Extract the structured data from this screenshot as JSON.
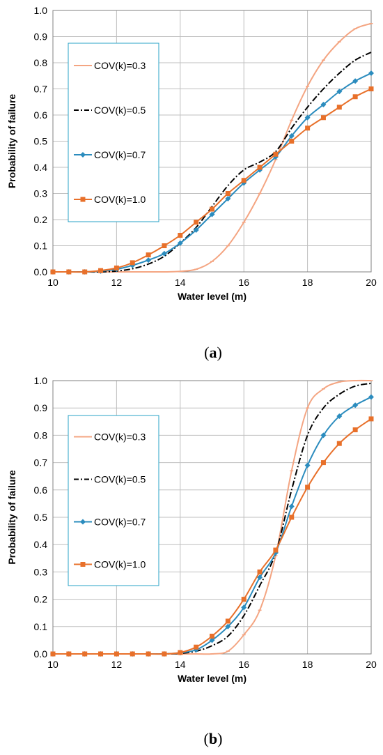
{
  "chart_data": [
    {
      "type": "line",
      "panel_label": {
        "open": "(",
        "letter": "a",
        "close": ")"
      },
      "xlabel": "Water level (m)",
      "ylabel": "Probability of failure",
      "xlim": [
        10,
        20
      ],
      "ylim": [
        0,
        1
      ],
      "xticks": [
        "10",
        "12",
        "14",
        "16",
        "18",
        "20"
      ],
      "yticks": [
        "0.0",
        "0.1",
        "0.2",
        "0.3",
        "0.4",
        "0.5",
        "0.6",
        "0.7",
        "0.8",
        "0.9",
        "1.0"
      ],
      "grid": true,
      "legend": "upper-left",
      "x": [
        10,
        10.5,
        11,
        11.5,
        12,
        12.5,
        13,
        13.5,
        14,
        14.5,
        15,
        15.5,
        16,
        16.5,
        17,
        17.5,
        18,
        18.5,
        19,
        19.5,
        20
      ],
      "series": [
        {
          "name": "COV(k)=0.3",
          "color": "#f4a582",
          "marker": "tick",
          "values": [
            0,
            0,
            0,
            0,
            0,
            0,
            0,
            0,
            0.002,
            0.01,
            0.04,
            0.1,
            0.19,
            0.3,
            0.43,
            0.58,
            0.71,
            0.81,
            0.88,
            0.93,
            0.95
          ]
        },
        {
          "name": "COV(k)=0.5",
          "color": "#000000",
          "marker": "none",
          "values": [
            0,
            0,
            0,
            0,
            0.003,
            0.012,
            0.03,
            0.06,
            0.11,
            0.17,
            0.25,
            0.33,
            0.39,
            0.42,
            0.46,
            0.55,
            0.63,
            0.7,
            0.76,
            0.81,
            0.84
          ]
        },
        {
          "name": "COV(k)=0.7",
          "color": "#2b8cbe",
          "marker": "diamond",
          "values": [
            0,
            0,
            0,
            0.003,
            0.01,
            0.025,
            0.045,
            0.07,
            0.11,
            0.16,
            0.22,
            0.28,
            0.34,
            0.39,
            0.44,
            0.52,
            0.59,
            0.64,
            0.69,
            0.73,
            0.76
          ]
        },
        {
          "name": "COV(k)=1.0",
          "color": "#e8702a",
          "marker": "square",
          "values": [
            0,
            0,
            0,
            0.005,
            0.015,
            0.035,
            0.065,
            0.1,
            0.14,
            0.19,
            0.24,
            0.3,
            0.35,
            0.4,
            0.45,
            0.5,
            0.55,
            0.59,
            0.63,
            0.67,
            0.7
          ]
        }
      ]
    },
    {
      "type": "line",
      "panel_label": {
        "open": "(",
        "letter": "b",
        "close": ")"
      },
      "xlabel": "Water level (m)",
      "ylabel": "Probability of failure",
      "xlim": [
        10,
        20
      ],
      "ylim": [
        0,
        1
      ],
      "xticks": [
        "10",
        "12",
        "14",
        "16",
        "18",
        "20"
      ],
      "yticks": [
        "0.0",
        "0.1",
        "0.2",
        "0.3",
        "0.4",
        "0.5",
        "0.6",
        "0.7",
        "0.8",
        "0.9",
        "1.0"
      ],
      "grid": true,
      "legend": "upper-left",
      "x": [
        10,
        10.5,
        11,
        11.5,
        12,
        12.5,
        13,
        13.5,
        14,
        14.5,
        15,
        15.5,
        16,
        16.5,
        17,
        17.5,
        18,
        18.5,
        19,
        19.5,
        20
      ],
      "series": [
        {
          "name": "COV(k)=0.3",
          "color": "#f4a582",
          "marker": "tick",
          "values": [
            0,
            0,
            0,
            0,
            0,
            0,
            0,
            0,
            0,
            0,
            0,
            0.01,
            0.07,
            0.16,
            0.36,
            0.67,
            0.9,
            0.97,
            0.995,
            1,
            1
          ]
        },
        {
          "name": "COV(k)=0.5",
          "color": "#000000",
          "marker": "none",
          "values": [
            0,
            0,
            0,
            0,
            0,
            0,
            0,
            0,
            0.002,
            0.01,
            0.03,
            0.065,
            0.14,
            0.25,
            0.37,
            0.6,
            0.8,
            0.9,
            0.95,
            0.98,
            0.99
          ]
        },
        {
          "name": "COV(k)=0.7",
          "color": "#2b8cbe",
          "marker": "diamond",
          "values": [
            0,
            0,
            0,
            0,
            0,
            0,
            0,
            0,
            0.004,
            0.015,
            0.05,
            0.1,
            0.17,
            0.28,
            0.37,
            0.54,
            0.69,
            0.8,
            0.87,
            0.91,
            0.94
          ]
        },
        {
          "name": "COV(k)=1.0",
          "color": "#e8702a",
          "marker": "square",
          "values": [
            0,
            0,
            0,
            0,
            0,
            0,
            0,
            0,
            0.005,
            0.025,
            0.065,
            0.12,
            0.2,
            0.3,
            0.38,
            0.5,
            0.61,
            0.7,
            0.77,
            0.82,
            0.86
          ]
        }
      ]
    }
  ]
}
